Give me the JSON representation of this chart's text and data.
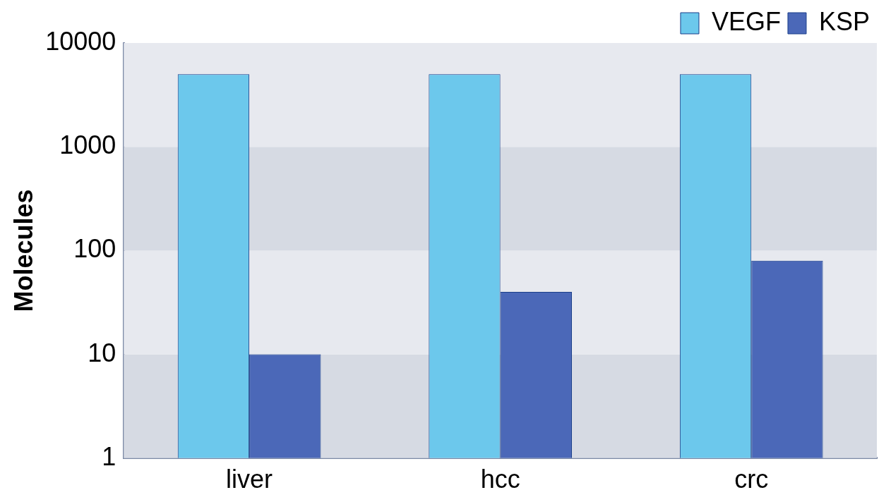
{
  "chart_data": {
    "type": "bar",
    "ylabel": "Molecules",
    "categories": [
      "liver",
      "hcc",
      "crc"
    ],
    "series": [
      {
        "name": "VEGF",
        "color": "#6cc8ec",
        "values": [
          5000,
          5000,
          5000
        ]
      },
      {
        "name": "KSP",
        "color": "#4b68b8",
        "values": [
          10,
          40,
          80
        ]
      }
    ],
    "log": "y",
    "ylim": [
      1,
      10000
    ],
    "yticks": [
      1,
      10,
      100,
      1000,
      10000
    ],
    "legend": "top right",
    "bands": [
      {
        "axis": "y",
        "from": 1,
        "to": 10,
        "color": "#d6dae3"
      },
      {
        "axis": "y",
        "from": 10,
        "to": 100,
        "color": "#e7e9ef"
      },
      {
        "axis": "y",
        "from": 100,
        "to": 1000,
        "color": "#d6dae3"
      },
      {
        "axis": "y",
        "from": 1000,
        "to": 10000,
        "color": "#e7e9ef"
      }
    ]
  }
}
